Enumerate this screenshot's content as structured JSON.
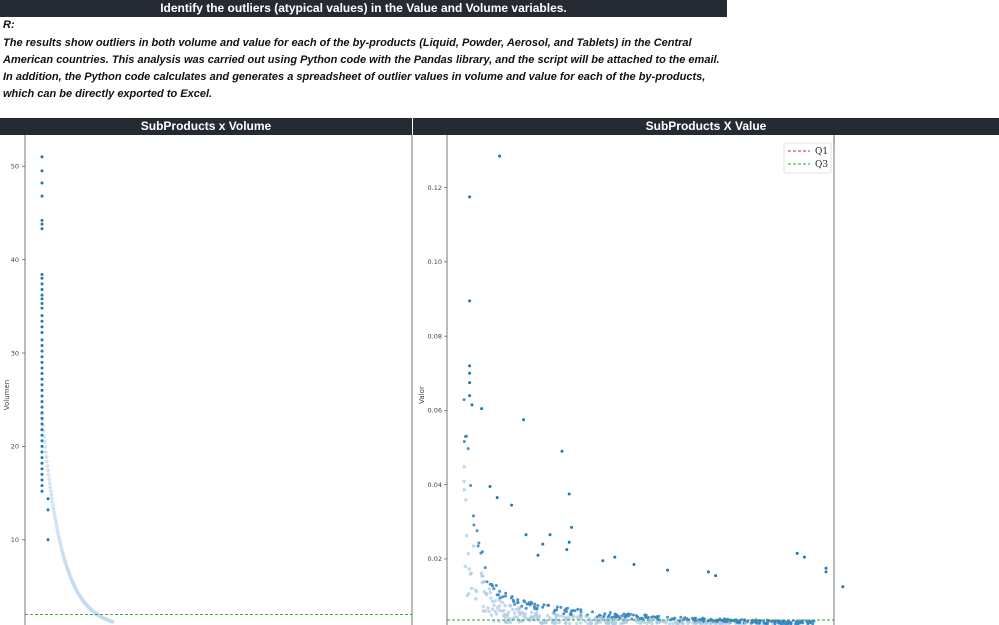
{
  "banner": {
    "title": "Identify the outliers (atypical values) in the Value and Volume variables."
  },
  "answer": {
    "label": "R:",
    "text": "The results show outliers in both volume and value for each of the by-products (Liquid, Powder, Aerosol, and Tablets) in the Central American countries. This analysis was carried out using Python code with the Pandas library, and the script will be attached to the email. In addition, the Python code calculates and generates a spreadsheet of outlier values in volume and value for each of the by-products, which can be directly exported to Excel."
  },
  "panels": {
    "left_title": "SubProducts x Volume",
    "right_title": "SubProducts X Value"
  },
  "chart_data": [
    {
      "type": "scatter",
      "title": "SubProducts x Volume",
      "ylabel": "Volumen",
      "ylim": [
        0,
        52
      ],
      "yticks": [
        10,
        20,
        30,
        40,
        50
      ],
      "point_color": "#1f77b4",
      "q3_line": {
        "value": 2.0,
        "color": "#2ca02c"
      },
      "outlier_values": [
        51.0,
        49.5,
        48.2,
        46.8,
        44.2,
        43.8,
        43.3,
        38.4,
        38.0,
        37.4,
        36.8,
        36.2,
        35.8,
        35.3,
        34.8,
        34.0,
        33.4,
        32.8,
        32.2,
        31.4,
        30.8,
        30.2,
        29.6,
        29.0,
        28.4,
        27.8,
        27.2,
        26.6,
        26.0,
        25.4,
        24.8,
        24.2,
        23.6,
        23.0,
        22.4,
        21.8,
        21.2,
        20.6,
        20.0,
        19.4,
        18.8,
        18.2,
        17.6,
        17.0,
        16.4,
        15.8,
        15.2,
        14.4,
        13.2,
        10.0
      ]
    },
    {
      "type": "scatter",
      "title": "SubProducts X Value",
      "ylabel": "Valor",
      "ylim": [
        0.0,
        0.132
      ],
      "yticks": [
        0.02,
        0.04,
        0.06,
        0.08,
        0.1,
        0.12
      ],
      "point_color": "#1f77b4",
      "legend": {
        "position": "top-right",
        "entries": [
          {
            "name": "Q1",
            "color": "#d62728"
          },
          {
            "name": "Q3",
            "color": "#2ca02c"
          }
        ]
      },
      "q3_line": {
        "value": 0.0015,
        "color": "#2ca02c"
      },
      "outlier_points": [
        [
          0.014,
          0.1285
        ],
        [
          0.0015,
          0.1175
        ],
        [
          0.0015,
          0.0895
        ],
        [
          0.0015,
          0.072
        ],
        [
          0.0015,
          0.07
        ],
        [
          0.0015,
          0.0675
        ],
        [
          0.0015,
          0.064
        ],
        [
          0.0025,
          0.0615
        ],
        [
          0.0065,
          0.0605
        ],
        [
          0.024,
          0.0575
        ],
        [
          0.04,
          0.049
        ],
        [
          0.043,
          0.0375
        ],
        [
          0.01,
          0.0395
        ],
        [
          0.019,
          0.0345
        ],
        [
          0.013,
          0.0365
        ],
        [
          0.044,
          0.0285
        ],
        [
          0.035,
          0.0265
        ],
        [
          0.043,
          0.0245
        ],
        [
          0.042,
          0.0225
        ],
        [
          0.057,
          0.0195
        ],
        [
          0.07,
          0.0185
        ],
        [
          0.084,
          0.017
        ],
        [
          0.101,
          0.0165
        ],
        [
          0.104,
          0.0155
        ],
        [
          0.138,
          0.0215
        ],
        [
          0.141,
          0.0205
        ],
        [
          0.15,
          0.0175
        ],
        [
          0.15,
          0.0165
        ],
        [
          0.157,
          0.0125
        ],
        [
          0.062,
          0.0205
        ],
        [
          0.03,
          0.021
        ],
        [
          0.025,
          0.0265
        ],
        [
          0.032,
          0.024
        ]
      ]
    }
  ]
}
